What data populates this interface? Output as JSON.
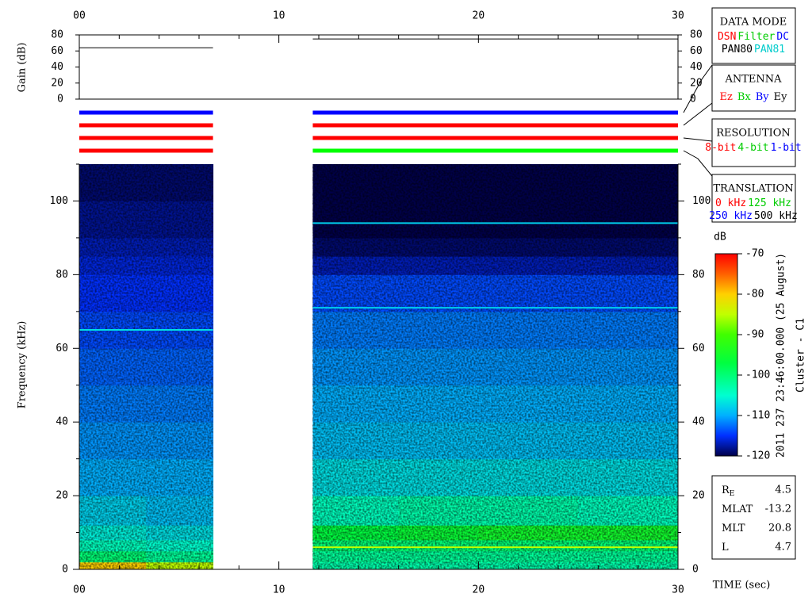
{
  "chart_data": {
    "type": "spectrogram",
    "xlabel": "TIME (sec)",
    "ylabel": "Frequency (kHz)",
    "xlim": [
      0,
      30
    ],
    "xticks": [
      {
        "value": 0,
        "label": "00"
      },
      10,
      20,
      30
    ],
    "x_minor_ticks": [
      2,
      4,
      6,
      8,
      12,
      14,
      16,
      18,
      22,
      24,
      26,
      28
    ],
    "ylim": [
      0,
      110
    ],
    "yticks": [
      0,
      20,
      40,
      60,
      80,
      100
    ],
    "y_minor_ticks": [
      10,
      30,
      50,
      70,
      90,
      110
    ],
    "freq_edges": [
      0,
      2,
      5,
      8,
      12,
      20,
      30,
      40,
      50,
      60,
      70,
      80,
      85,
      90,
      100,
      110
    ],
    "segments": [
      {
        "time_edges": [
          0,
          3.35,
          6.7
        ],
        "values": [
          [
            -80,
            -85
          ],
          [
            -100,
            -102
          ],
          [
            -104,
            -105
          ],
          [
            -106,
            -107
          ],
          [
            -108,
            -109
          ],
          [
            -110,
            -110
          ],
          [
            -111,
            -111
          ],
          [
            -112,
            -112
          ],
          [
            -113,
            -113
          ],
          [
            -114,
            -114
          ],
          [
            -115,
            -115
          ],
          [
            -116,
            -116
          ],
          [
            -117,
            -117
          ],
          [
            -118,
            -118
          ],
          [
            -119,
            -119
          ]
        ]
      },
      {
        "time_edges": [
          11.7,
          16,
          20,
          25,
          30
        ],
        "values": [
          [
            -103,
            -103,
            -103,
            -103
          ],
          [
            -102,
            -102,
            -102,
            -102
          ],
          [
            -100,
            -100,
            -100,
            -100
          ],
          [
            -97,
            -96,
            -95,
            -95
          ],
          [
            -104,
            -103,
            -103,
            -104
          ],
          [
            -107,
            -107,
            -107,
            -107
          ],
          [
            -109,
            -109,
            -109,
            -109
          ],
          [
            -110,
            -110,
            -110,
            -110
          ],
          [
            -111,
            -111,
            -111,
            -111
          ],
          [
            -112,
            -112,
            -112,
            -112
          ],
          [
            -114,
            -114,
            -114,
            -114
          ],
          [
            -117,
            -117,
            -117,
            -117
          ],
          [
            -119,
            -119,
            -119,
            -119
          ],
          [
            -120,
            -120,
            -120,
            -120
          ],
          [
            -120,
            -120,
            -120,
            -120
          ]
        ]
      }
    ],
    "lines": [
      {
        "segment": 1,
        "freq": 94,
        "value": -108
      },
      {
        "segment": 1,
        "freq": 71,
        "value": -108
      },
      {
        "segment": 0,
        "freq": 65,
        "value": -107
      },
      {
        "segment": 1,
        "freq": 6,
        "value": -85
      }
    ],
    "colorbar": {
      "label": "dB",
      "clim": [
        -120,
        -70
      ],
      "ticks": [
        -70,
        -80,
        -90,
        -100,
        -110,
        -120
      ]
    },
    "gain": {
      "ylabel": "Gain (dB)",
      "ylim": [
        0,
        80
      ],
      "yticks": [
        0,
        20,
        40,
        60,
        80
      ],
      "series": [
        {
          "x": [
            0,
            6.7
          ],
          "values": [
            64,
            64
          ],
          "color": "#000000"
        },
        {
          "x": [
            11.7,
            30
          ],
          "values": [
            75,
            75
          ],
          "color": "#000000"
        }
      ]
    },
    "mode_bars": [
      [
        {
          "x": [
            0,
            6.7
          ],
          "color": "#0000ff"
        },
        {
          "x": [
            11.7,
            30
          ],
          "color": "#0000ff"
        }
      ],
      [
        {
          "x": [
            0,
            6.7
          ],
          "color": "#ff0000"
        },
        {
          "x": [
            11.7,
            30
          ],
          "color": "#ff0000"
        }
      ],
      [
        {
          "x": [
            0,
            6.7
          ],
          "color": "#ff0000"
        },
        {
          "x": [
            11.7,
            30
          ],
          "color": "#ff0000"
        }
      ],
      [
        {
          "x": [
            0,
            6.7
          ],
          "color": "#ff0000"
        },
        {
          "x": [
            11.7,
            30
          ],
          "color": "#00ff00"
        }
      ]
    ],
    "legend_boxes": [
      {
        "title": "DATA MODE",
        "lines": [
          [
            {
              "text": "DSN",
              "color": "#ff0000"
            },
            {
              "text": "Filter",
              "color": "#00cc00"
            },
            {
              "text": "DC",
              "color": "#0000ff"
            }
          ],
          [
            {
              "text": "PAN80",
              "color": "#000000"
            },
            {
              "text": "PAN81",
              "color": "#00cccc"
            }
          ]
        ]
      },
      {
        "title": "ANTENNA",
        "lines": [
          [
            {
              "text": "Ez",
              "color": "#ff0000"
            },
            {
              "text": "Bx",
              "color": "#00cc00"
            },
            {
              "text": "By",
              "color": "#0000ff"
            },
            {
              "text": "Ey",
              "color": "#000000"
            }
          ]
        ]
      },
      {
        "title": "RESOLUTION",
        "lines": [
          [
            {
              "text": "8-bit",
              "color": "#ff0000"
            },
            {
              "text": "4-bit",
              "color": "#00cc00"
            },
            {
              "text": "1-bit",
              "color": "#0000ff"
            }
          ]
        ]
      },
      {
        "title": "TRANSLATION",
        "lines": [
          [
            {
              "text": "0 kHz",
              "color": "#ff0000"
            },
            {
              "text": "125 kHz",
              "color": "#00cc00"
            }
          ],
          [
            {
              "text": "250 kHz",
              "color": "#0000ff"
            },
            {
              "text": "500 kHz",
              "color": "#000000"
            }
          ]
        ]
      }
    ],
    "info": [
      {
        "label": "R",
        "sub": "E",
        "value": 4.5
      },
      {
        "label": "MLAT",
        "value": -13.2
      },
      {
        "label": "MLT",
        "value": 20.8
      },
      {
        "label": "L",
        "value": 4.7
      }
    ],
    "stamp": "2011 237 23:46:00.000 (25 August)",
    "spacecraft": "Cluster - C1"
  }
}
